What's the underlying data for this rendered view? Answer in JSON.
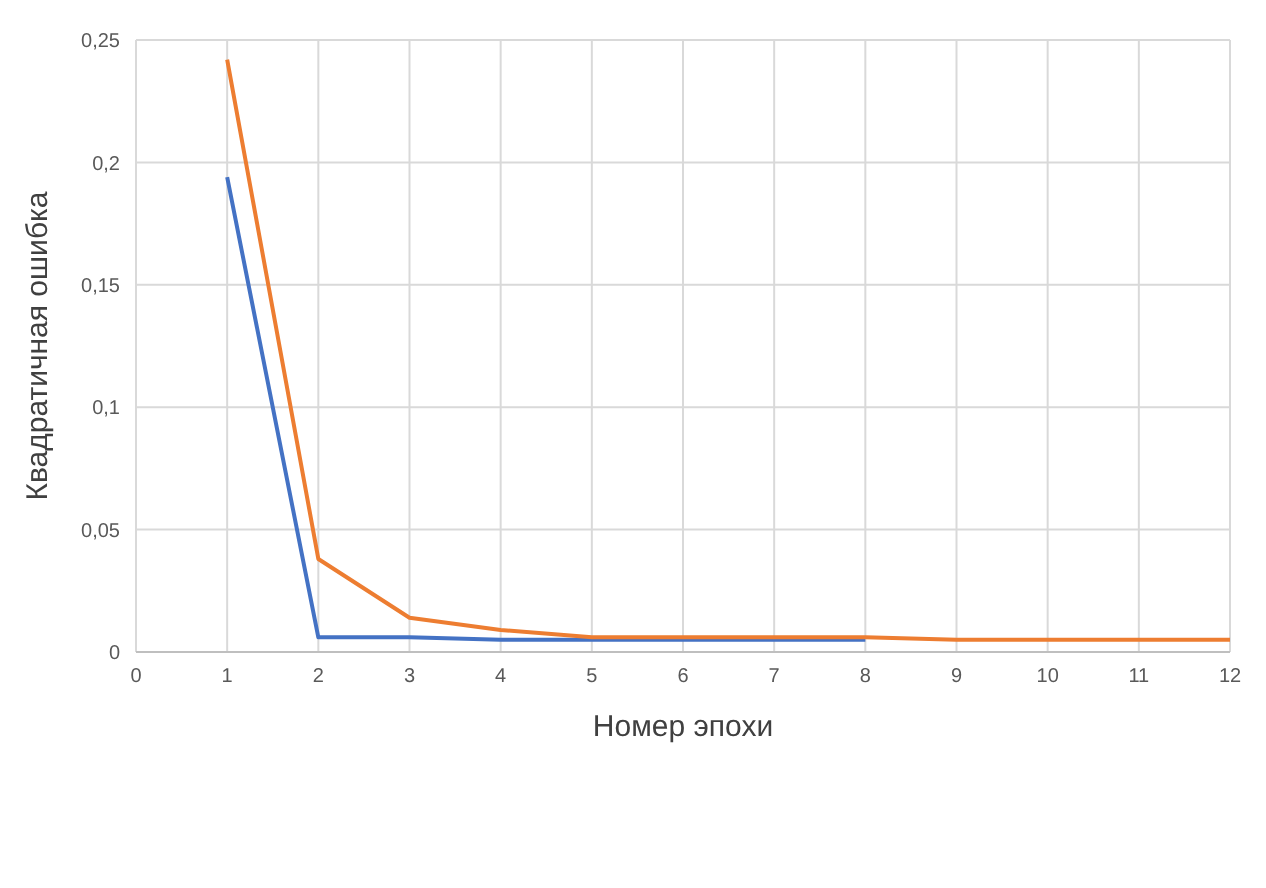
{
  "chart_data": {
    "type": "line",
    "xlabel": "Номер эпохи",
    "ylabel": "Квадратичная ошибка",
    "x": [
      1,
      2,
      3,
      4,
      5,
      6,
      7,
      8,
      9,
      10,
      11,
      12
    ],
    "series": [
      {
        "color": "#4472c4",
        "values": [
          0.194,
          0.006,
          0.006,
          0.005,
          0.005,
          0.005,
          0.005,
          0.005,
          null,
          null,
          null,
          null
        ]
      },
      {
        "color": "#ed7d31",
        "values": [
          0.242,
          0.038,
          0.014,
          0.009,
          0.006,
          0.006,
          0.006,
          0.006,
          0.005,
          0.005,
          0.005,
          0.005
        ]
      }
    ],
    "xlim": [
      0,
      12
    ],
    "xticks": [
      0,
      1,
      2,
      3,
      4,
      5,
      6,
      7,
      8,
      9,
      10,
      11,
      12
    ],
    "ylim": [
      0,
      0.25
    ],
    "yticks": [
      0,
      {
        "value": 0.05,
        "label": "0,05"
      },
      {
        "value": 0.1,
        "label": "0,1"
      },
      {
        "value": 0.15,
        "label": "0,15"
      },
      {
        "value": 0.2,
        "label": "0,2"
      },
      {
        "value": 0.25,
        "label": "0,25"
      }
    ],
    "grid": true,
    "marker": "none",
    "line_style": "solid"
  }
}
